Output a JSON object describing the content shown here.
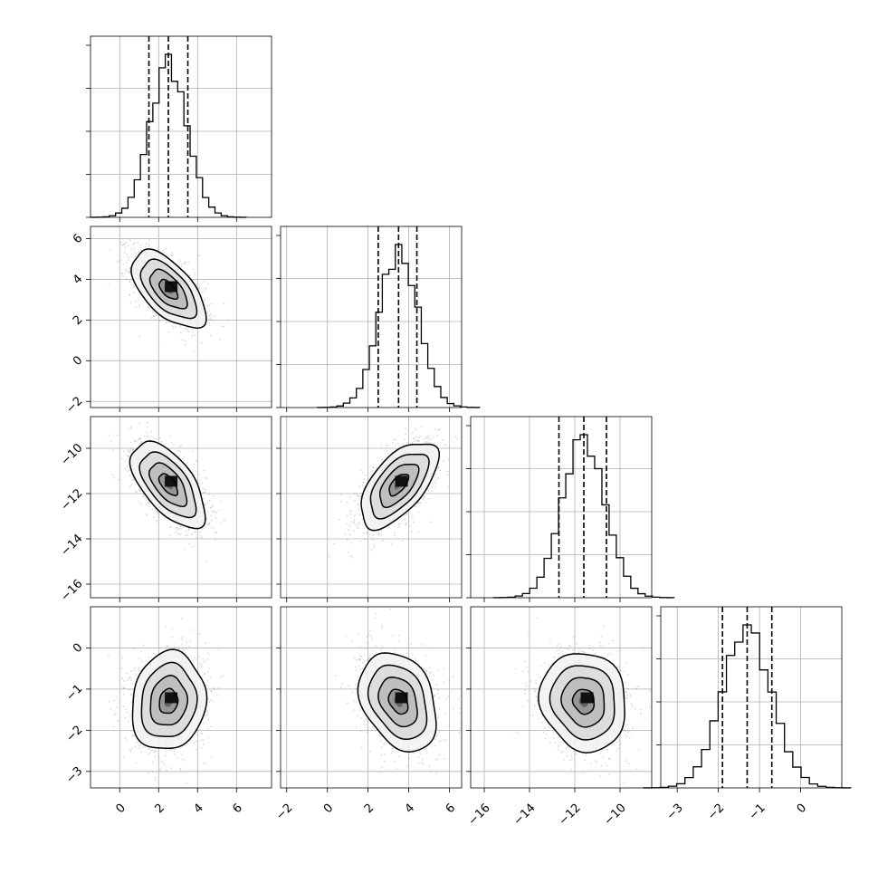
{
  "chart_data": {
    "type": "corner",
    "parameters": [
      {
        "range": [
          -1.5,
          7.8
        ],
        "ticks": [
          0,
          2,
          4,
          6
        ],
        "tick_labels": [
          "0",
          "2",
          "4",
          "6"
        ],
        "mean": 2.5,
        "sd": 0.95,
        "quantiles": [
          1.5,
          2.5,
          3.5
        ]
      },
      {
        "range": [
          -2.3,
          6.6
        ],
        "ticks": [
          -2,
          0,
          2,
          4,
          6
        ],
        "tick_labels": [
          "−2",
          "0",
          "2",
          "4",
          "6"
        ],
        "mean": 3.5,
        "sd": 0.95,
        "quantiles": [
          2.5,
          3.5,
          4.4
        ]
      },
      {
        "range": [
          -16.6,
          -8.6
        ],
        "ticks": [
          -16,
          -14,
          -12,
          -10
        ],
        "tick_labels": [
          "−16",
          "−14",
          "−12",
          "−10"
        ],
        "mean": -11.6,
        "sd": 0.95,
        "quantiles": [
          -12.7,
          -11.6,
          -10.6
        ]
      },
      {
        "range": [
          -3.4,
          1.0
        ],
        "ticks": [
          -3,
          -2,
          -1,
          0
        ],
        "tick_labels": [
          "−3",
          "−2",
          "−1",
          "0"
        ],
        "mean": -1.3,
        "sd": 0.6,
        "quantiles": [
          -1.9,
          -1.3,
          -0.7
        ]
      }
    ],
    "correlations": [
      [
        1.0,
        -0.6,
        -0.6,
        0.1
      ],
      [
        -0.6,
        1.0,
        0.6,
        -0.3
      ],
      [
        -0.6,
        0.6,
        1.0,
        -0.1
      ],
      [
        0.1,
        -0.3,
        -0.1,
        1.0
      ]
    ],
    "histogram_bins": 25,
    "contour_levels_sigma": [
      0.5,
      1.0,
      1.5,
      2.0
    ],
    "grid": true,
    "title": "",
    "xlabel": "",
    "ylabel": ""
  }
}
